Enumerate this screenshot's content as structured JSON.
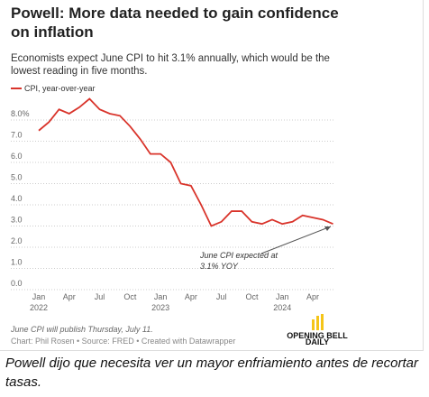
{
  "chart_data": {
    "type": "line",
    "title": "Powell: More data needed to gain confidence on inflation",
    "subtitle": "Economists expect June CPI to hit 3.1% annually, which would be the lowest reading in five months.",
    "categories": [
      "Jan",
      null,
      null,
      "Apr",
      null,
      null,
      "Jul",
      null,
      null,
      "Oct",
      null,
      null,
      "Jan",
      null,
      null,
      "Apr",
      null,
      null,
      "Jul",
      null,
      null,
      "Oct",
      null,
      null,
      "Jan",
      null,
      null,
      "Apr",
      null,
      null
    ],
    "year_labels": [
      "2022",
      null,
      null,
      null,
      null,
      null,
      null,
      null,
      null,
      null,
      null,
      null,
      "2023",
      null,
      null,
      null,
      null,
      null,
      null,
      null,
      null,
      null,
      null,
      null,
      "2024",
      null,
      null,
      null,
      null,
      null
    ],
    "series": [
      {
        "name": "CPI, year-over-year",
        "color": "#d9342b",
        "values": [
          7.5,
          7.9,
          8.5,
          8.3,
          8.6,
          9.0,
          8.5,
          8.3,
          8.2,
          7.7,
          7.1,
          6.4,
          6.4,
          6.0,
          5.0,
          4.9,
          4.0,
          3.0,
          3.2,
          3.7,
          3.7,
          3.2,
          3.1,
          3.3,
          3.1,
          3.2,
          3.5,
          3.4,
          3.3,
          3.1
        ]
      }
    ],
    "ylim": [
      0,
      9.2
    ],
    "yticks": [
      {
        "value": 0,
        "label": "0.0"
      },
      {
        "value": 1,
        "label": "1.0"
      },
      {
        "value": 2,
        "label": "2.0"
      },
      {
        "value": 3,
        "label": "3.0"
      },
      {
        "value": 4,
        "label": "4.0"
      },
      {
        "value": 5,
        "label": "5.0"
      },
      {
        "value": 6,
        "label": "6.0"
      },
      {
        "value": 7,
        "label": "7.0"
      },
      {
        "value": 8,
        "label": "8.0%"
      }
    ],
    "grid": true,
    "annotation": [
      "June CPI expected at",
      "3.1% YOY"
    ],
    "note": "June CPI will publish Thursday, July 11.",
    "credit": "Chart: Phil Rosen • Source: FRED • Created with Datawrapper",
    "logo_text": [
      "OPENING BELL",
      "DAILY"
    ]
  },
  "caption": "Powell dijo que necesita ver un mayor enfriamiento antes de recortar tasas."
}
